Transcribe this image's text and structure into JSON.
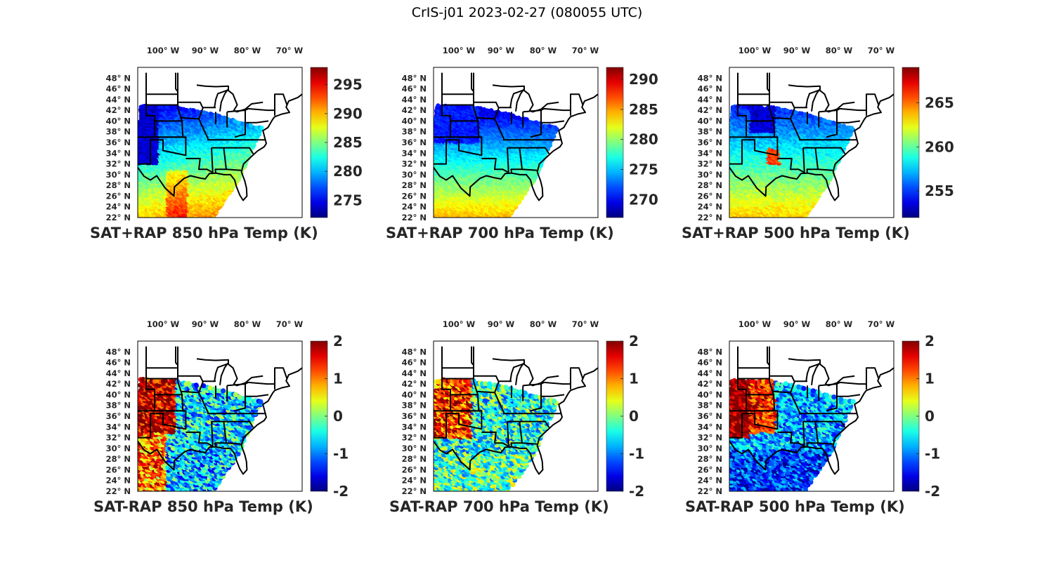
{
  "figure_title": "CrIS-j01 2023-02-27 (080055 UTC)",
  "colors": {
    "land_outline": "#000000",
    "axes_frame": "#000000",
    "text": "#262626",
    "colormap": "jet"
  },
  "chart_data": [
    {
      "type": "heatmap",
      "title": "SAT+RAP 850 hPa Temp (K)",
      "quantity": "temperature",
      "level_hPa": 850,
      "units": "K",
      "x_ticks": [
        "100° W",
        "90° W",
        "80° W",
        "70° W"
      ],
      "y_ticks": [
        "48° N",
        "46° N",
        "44° N",
        "42° N",
        "40° N",
        "38° N",
        "36° N",
        "34° N",
        "32° N",
        "30° N",
        "28° N",
        "26° N",
        "24° N",
        "22° N"
      ],
      "xlim": [
        -106,
        -67
      ],
      "ylim": [
        22,
        50
      ],
      "colorbar": {
        "ticks": [
          275,
          280,
          285,
          290,
          295
        ],
        "range": [
          272,
          298
        ]
      },
      "field_pattern": "warm-south-cold-northwest"
    },
    {
      "type": "heatmap",
      "title": "SAT+RAP 700 hPa Temp (K)",
      "quantity": "temperature",
      "level_hPa": 700,
      "units": "K",
      "x_ticks": [
        "100° W",
        "90° W",
        "80° W",
        "70° W"
      ],
      "y_ticks": [
        "48° N",
        "46° N",
        "44° N",
        "42° N",
        "40° N",
        "38° N",
        "36° N",
        "34° N",
        "32° N",
        "30° N",
        "28° N",
        "26° N",
        "24° N",
        "22° N"
      ],
      "xlim": [
        -106,
        -67
      ],
      "ylim": [
        22,
        50
      ],
      "colorbar": {
        "ticks": [
          270,
          275,
          280,
          285,
          290
        ],
        "range": [
          267,
          292
        ]
      },
      "field_pattern": "warm-south-cold-northwest"
    },
    {
      "type": "heatmap",
      "title": "SAT+RAP 500 hPa Temp (K)",
      "quantity": "temperature",
      "level_hPa": 500,
      "units": "K",
      "x_ticks": [
        "100° W",
        "90° W",
        "80° W",
        "70° W"
      ],
      "y_ticks": [
        "48° N",
        "46° N",
        "44° N",
        "42° N",
        "40° N",
        "38° N",
        "36° N",
        "34° N",
        "32° N",
        "30° N",
        "28° N",
        "26° N",
        "24° N",
        "22° N"
      ],
      "xlim": [
        -106,
        -67
      ],
      "ylim": [
        22,
        50
      ],
      "colorbar": {
        "ticks": [
          255,
          260,
          265
        ],
        "range": [
          252,
          269
        ]
      },
      "field_pattern": "warm-south-cold-north"
    },
    {
      "type": "heatmap",
      "title": "SAT-RAP 850 hPa Temp (K)",
      "quantity": "temperature difference",
      "level_hPa": 850,
      "units": "K",
      "x_ticks": [
        "100° W",
        "90° W",
        "80° W",
        "70° W"
      ],
      "y_ticks": [
        "48° N",
        "46° N",
        "44° N",
        "42° N",
        "40° N",
        "38° N",
        "36° N",
        "34° N",
        "32° N",
        "30° N",
        "28° N",
        "26° N",
        "24° N",
        "22° N"
      ],
      "xlim": [
        -106,
        -67
      ],
      "ylim": [
        22,
        50
      ],
      "colorbar": {
        "ticks": [
          -2,
          -1,
          0,
          1,
          2
        ],
        "range": [
          -2,
          2
        ]
      },
      "field_pattern": "positive-west-negative-gulf"
    },
    {
      "type": "heatmap",
      "title": "SAT-RAP 700 hPa Temp (K)",
      "quantity": "temperature difference",
      "level_hPa": 700,
      "units": "K",
      "x_ticks": [
        "100° W",
        "90° W",
        "80° W",
        "70° W"
      ],
      "y_ticks": [
        "48° N",
        "46° N",
        "44° N",
        "42° N",
        "40° N",
        "38° N",
        "36° N",
        "34° N",
        "32° N",
        "30° N",
        "28° N",
        "26° N",
        "24° N",
        "22° N"
      ],
      "xlim": [
        -106,
        -67
      ],
      "ylim": [
        22,
        50
      ],
      "colorbar": {
        "ticks": [
          -2,
          -1,
          0,
          1,
          2
        ],
        "range": [
          -2,
          2
        ]
      },
      "field_pattern": "positive-west-mixed-gulf"
    },
    {
      "type": "heatmap",
      "title": "SAT-RAP 500 hPa Temp (K)",
      "quantity": "temperature difference",
      "level_hPa": 500,
      "units": "K",
      "x_ticks": [
        "100° W",
        "90° W",
        "80° W",
        "70° W"
      ],
      "y_ticks": [
        "48° N",
        "46° N",
        "44° N",
        "42° N",
        "40° N",
        "38° N",
        "36° N",
        "34° N",
        "32° N",
        "30° N",
        "28° N",
        "26° N",
        "24° N",
        "22° N"
      ],
      "xlim": [
        -106,
        -67
      ],
      "ylim": [
        22,
        50
      ],
      "colorbar": {
        "ticks": [
          -2,
          -1,
          0,
          1,
          2
        ],
        "range": [
          -2,
          2
        ]
      },
      "field_pattern": "strong-positive-west-negative-gulf"
    }
  ]
}
